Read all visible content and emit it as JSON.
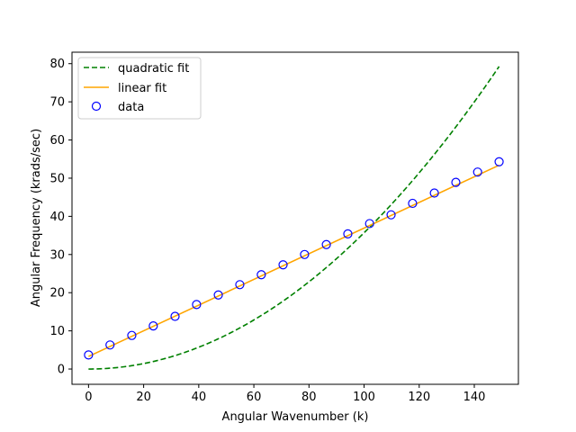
{
  "chart_data": {
    "type": "line",
    "xlabel": "Angular Wavenumber (k)",
    "ylabel": "Angular Frequency (krads/sec)",
    "xlim": [
      -6,
      156
    ],
    "ylim": [
      -4,
      83
    ],
    "xticks": [
      0,
      20,
      40,
      60,
      80,
      100,
      120,
      140
    ],
    "yticks": [
      0,
      10,
      20,
      30,
      40,
      50,
      60,
      70,
      80
    ],
    "legend_position": "top-left",
    "grid": false,
    "series": [
      {
        "name": "quadratic fit",
        "kind": "line",
        "style": "dashed",
        "color": "#008000",
        "model": "quadratic",
        "coefficient": 0.00357,
        "x_range": [
          0,
          149
        ]
      },
      {
        "name": "linear fit",
        "kind": "line",
        "style": "solid",
        "color": "#ffa500",
        "x": [
          0,
          149
        ],
        "y": [
          3.3,
          53.4
        ]
      },
      {
        "name": "data",
        "kind": "scatter",
        "color": "#0000ff",
        "x": [
          0,
          7.8,
          15.7,
          23.5,
          31.4,
          39.2,
          47.1,
          54.9,
          62.7,
          70.6,
          78.4,
          86.3,
          94.1,
          102,
          109.8,
          117.6,
          125.5,
          133.3,
          141.2,
          149
        ],
        "y": [
          3.7,
          6.3,
          8.8,
          11.3,
          13.8,
          16.9,
          19.4,
          22.1,
          24.7,
          27.3,
          30.0,
          32.6,
          35.4,
          38.1,
          40.4,
          43.4,
          46.1,
          48.9,
          51.6,
          54.3
        ]
      }
    ]
  }
}
